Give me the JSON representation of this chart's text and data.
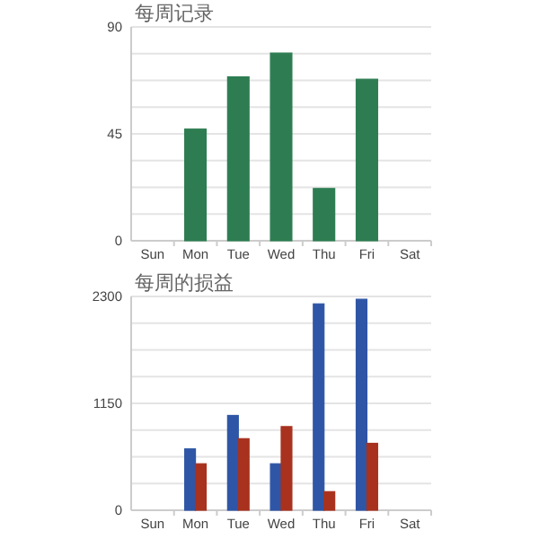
{
  "chart_data": [
    {
      "type": "bar",
      "title": "每周记录",
      "categories": [
        "Sun",
        "Mon",
        "Tue",
        "Wed",
        "Thu",
        "Fri",
        "Sat"
      ],
      "series": [
        {
          "color": "#2e7d52",
          "values": [
            null,
            47,
            69,
            79,
            22,
            68,
            null
          ]
        }
      ],
      "ylim": [
        0,
        90
      ],
      "yticks": [
        0,
        45,
        90
      ],
      "grid": "y"
    },
    {
      "type": "bar",
      "title": "每周的损益",
      "categories": [
        "Sun",
        "Mon",
        "Tue",
        "Wed",
        "Thu",
        "Fri",
        "Sat"
      ],
      "series": [
        {
          "color": "#2f56a6",
          "values": [
            null,
            660,
            1020,
            500,
            2220,
            2270,
            null
          ]
        },
        {
          "color": "#a8321e",
          "values": [
            null,
            500,
            770,
            900,
            200,
            720,
            null
          ]
        }
      ],
      "ylim": [
        0,
        2300
      ],
      "yticks": [
        0,
        1150,
        2300
      ],
      "grid": "y"
    }
  ]
}
